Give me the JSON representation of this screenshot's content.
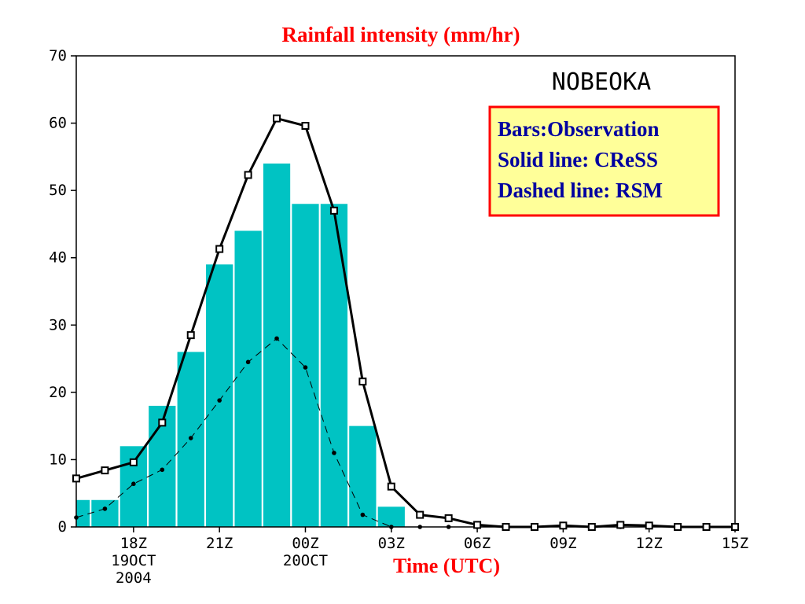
{
  "chart_data": {
    "type": "bar",
    "title": "Rainfall intensity (mm/hr)",
    "xlabel": "Time (UTC)",
    "station": "NOBEOKA",
    "ylim": [
      0,
      70
    ],
    "yticks": [
      0,
      10,
      20,
      30,
      40,
      50,
      60,
      70
    ],
    "x_hours": [
      16,
      17,
      18,
      19,
      20,
      21,
      22,
      23,
      24,
      25,
      26,
      27,
      28,
      29,
      30,
      31,
      32,
      33,
      34,
      35,
      36,
      37,
      38,
      39
    ],
    "xlim_hours": [
      16,
      39
    ],
    "xticks": [
      {
        "hour": 18,
        "lines": [
          "18Z",
          "19OCT",
          "2004"
        ]
      },
      {
        "hour": 21,
        "lines": [
          "21Z"
        ]
      },
      {
        "hour": 24,
        "lines": [
          "00Z",
          "20OCT"
        ]
      },
      {
        "hour": 27,
        "lines": [
          "03Z"
        ]
      },
      {
        "hour": 30,
        "lines": [
          "06Z"
        ]
      },
      {
        "hour": 33,
        "lines": [
          "09Z"
        ]
      },
      {
        "hour": 36,
        "lines": [
          "12Z"
        ]
      },
      {
        "hour": 39,
        "lines": [
          "15Z"
        ]
      }
    ],
    "legend": [
      "Bars:Observation",
      "Solid line: CReSS",
      "Dashed line: RSM"
    ],
    "legend_position": "top-right",
    "series": [
      {
        "name": "Observation",
        "kind": "bar",
        "values": [
          4,
          4,
          12,
          18,
          26,
          39,
          44,
          54,
          48,
          48,
          15,
          3,
          0,
          0,
          0,
          0,
          0,
          0,
          0,
          0,
          0,
          0,
          0,
          0
        ]
      },
      {
        "name": "CReSS",
        "kind": "line-solid",
        "values": [
          7.2,
          8.4,
          9.6,
          15.5,
          28.5,
          41.3,
          52.3,
          60.7,
          59.6,
          47.0,
          21.6,
          6.0,
          1.8,
          1.3,
          0.3,
          0.0,
          0.0,
          0.2,
          0.0,
          0.3,
          0.2,
          0.0,
          0.0,
          0.0
        ]
      },
      {
        "name": "RSM",
        "kind": "line-dashed",
        "values": [
          1.4,
          2.7,
          6.4,
          8.5,
          13.2,
          18.8,
          24.5,
          28.0,
          23.7,
          11.0,
          1.8,
          0.0,
          0.0,
          0.0,
          0.0,
          0.0,
          0.0,
          0.0,
          0.0,
          0.0,
          0.0,
          0.0,
          0.0,
          0.0
        ]
      }
    ],
    "colors": {
      "bars": "#00c3c3",
      "title": "#ff0000",
      "legend_text": "#0000a0",
      "legend_border": "#ff0000",
      "legend_fill": "#ffff99",
      "lines": "#000000"
    }
  }
}
